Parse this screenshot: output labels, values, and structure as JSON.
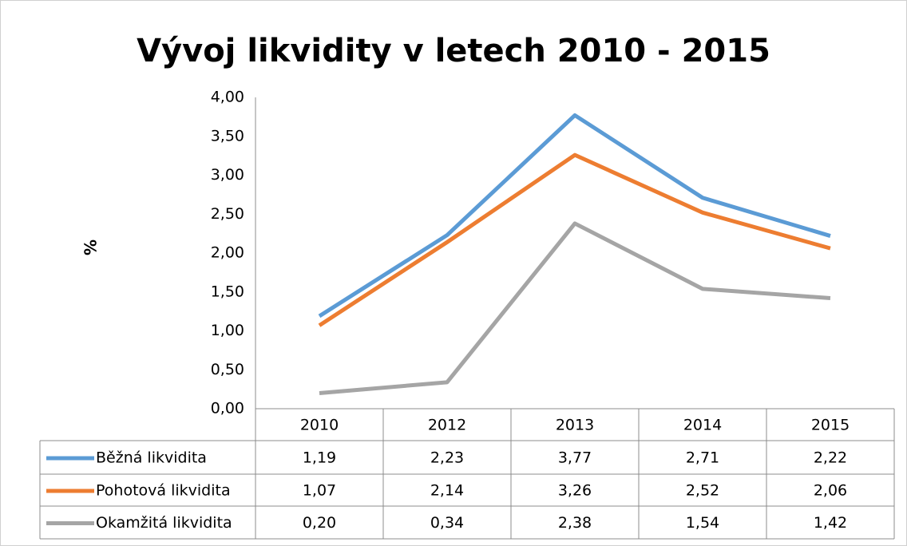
{
  "chart_data": {
    "type": "line",
    "title": "Vývoj likvidity v letech 2010 - 2015",
    "y_label": "%",
    "categories": [
      "2010",
      "2012",
      "2013",
      "2014",
      "2015"
    ],
    "series": [
      {
        "name": "Běžná likvidita",
        "color": "#5b9bd5",
        "values": [
          1.19,
          2.23,
          3.77,
          2.71,
          2.22
        ],
        "value_labels": [
          "1,19",
          "2,23",
          "3,77",
          "2,71",
          "2,22"
        ]
      },
      {
        "name": "Pohotová likvidita",
        "color": "#ed7d31",
        "values": [
          1.07,
          2.14,
          3.26,
          2.52,
          2.06
        ],
        "value_labels": [
          "1,07",
          "2,14",
          "3,26",
          "2,52",
          "2,06"
        ]
      },
      {
        "name": "Okamžitá likvidita",
        "color": "#a5a5a5",
        "values": [
          0.2,
          0.34,
          2.38,
          1.54,
          1.42
        ],
        "value_labels": [
          "0,20",
          "0,34",
          "2,38",
          "1,54",
          "1,42"
        ]
      }
    ],
    "ylim": [
      0,
      4
    ],
    "yticks": [
      {
        "value": 0,
        "label": "0,00"
      },
      {
        "value": 0.5,
        "label": "0,50"
      },
      {
        "value": 1,
        "label": "1,00"
      },
      {
        "value": 1.5,
        "label": "1,50"
      },
      {
        "value": 2,
        "label": "2,00"
      },
      {
        "value": 2.5,
        "label": "2,50"
      },
      {
        "value": 3,
        "label": "3,00"
      },
      {
        "value": 3.5,
        "label": "3,50"
      },
      {
        "value": 4,
        "label": "4,00"
      }
    ],
    "grid": false,
    "data_table": true
  }
}
